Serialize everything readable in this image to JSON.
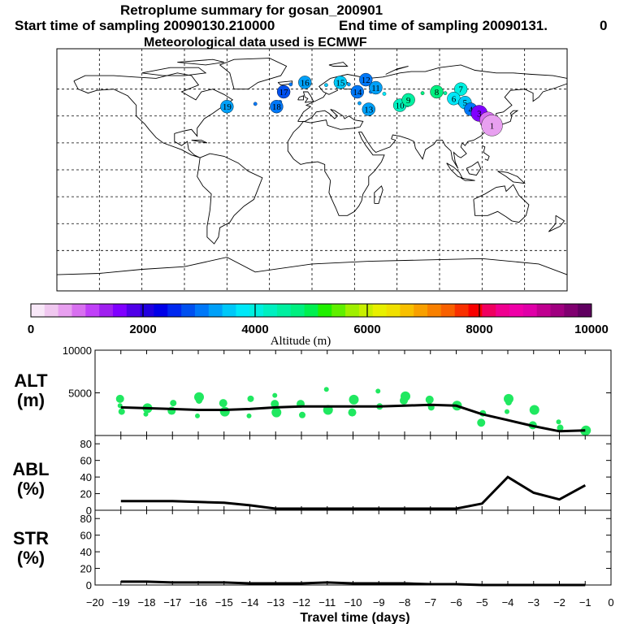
{
  "header": {
    "title": "Retroplume summary for gosan_200901",
    "start_label": "Start time of sampling 20090130.210000",
    "end_label": "End time of sampling 20090131.",
    "end_suffix": "0",
    "met_label": "Meteorological data used is ECMWF"
  },
  "chart_data": [
    {
      "type": "scatter",
      "name": "retroplume-map",
      "description_labels": "numbers = travel days back",
      "points": [
        {
          "day": 1,
          "lon": 127,
          "lat": 33,
          "alt": 500
        },
        {
          "day": 2,
          "lon": 124,
          "lat": 37,
          "alt": 800
        },
        {
          "day": 3,
          "lon": 118,
          "lat": 42,
          "alt": 1500
        },
        {
          "day": 4,
          "lon": 112,
          "lat": 45,
          "alt": 3000
        },
        {
          "day": 5,
          "lon": 108,
          "lat": 50,
          "alt": 3500
        },
        {
          "day": 6,
          "lon": 100,
          "lat": 53,
          "alt": 3800
        },
        {
          "day": 7,
          "lon": 105,
          "lat": 60,
          "alt": 4000
        },
        {
          "day": 8,
          "lon": 88,
          "lat": 58,
          "alt": 4800
        },
        {
          "day": 9,
          "lon": 68,
          "lat": 52,
          "alt": 4500
        },
        {
          "day": 10,
          "lon": 62,
          "lat": 48,
          "alt": 4200
        },
        {
          "day": 11,
          "lon": 45,
          "lat": 61,
          "alt": 3200
        },
        {
          "day": 12,
          "lon": 38,
          "lat": 67,
          "alt": 3000
        },
        {
          "day": 13,
          "lon": 40,
          "lat": 45,
          "alt": 3300
        },
        {
          "day": 14,
          "lon": 32,
          "lat": 58,
          "alt": 3100
        },
        {
          "day": 15,
          "lon": 20,
          "lat": 65,
          "alt": 3600
        },
        {
          "day": 16,
          "lon": -5,
          "lat": 65,
          "alt": 3400
        },
        {
          "day": 17,
          "lon": -20,
          "lat": 58,
          "alt": 2900
        },
        {
          "day": 18,
          "lon": -25,
          "lat": 47,
          "alt": 3000
        },
        {
          "day": 19,
          "lon": -60,
          "lat": 47,
          "alt": 3300
        }
      ]
    },
    {
      "type": "line",
      "name": "altitude",
      "ylabel": "ALT\n(m)",
      "ylim": [
        0,
        10000
      ],
      "yticks": [
        5000,
        10000
      ],
      "x": [
        -19,
        -18,
        -17,
        -16,
        -15,
        -14,
        -13,
        -12,
        -11,
        -10,
        -9,
        -8,
        -7,
        -6,
        -5,
        -4,
        -3,
        -2,
        -1
      ],
      "values": [
        3300,
        3200,
        3100,
        3000,
        3000,
        3100,
        3300,
        3400,
        3400,
        3400,
        3400,
        3500,
        3600,
        3500,
        2500,
        1800,
        1100,
        500,
        600
      ],
      "scatter_values": [
        3500,
        2800,
        4300,
        3200,
        2500,
        3800,
        2900,
        4500,
        2300,
        4100,
        3800,
        2800,
        2300,
        4300,
        3700,
        2700,
        4700,
        2400,
        3700,
        3000,
        5400,
        4200,
        2700,
        4200,
        5200,
        3400,
        4100,
        4600,
        3600,
        3300,
        4200,
        3500,
        3700,
        2600,
        1500,
        4300,
        2800,
        3900,
        1200,
        3000,
        1600,
        900,
        500,
        600
      ]
    },
    {
      "type": "line",
      "name": "abl",
      "ylabel": "ABL\n(%)",
      "ylim": [
        0,
        90
      ],
      "yticks": [
        0,
        20,
        40,
        60,
        80
      ],
      "x": [
        -19,
        -18,
        -17,
        -16,
        -15,
        -14,
        -13,
        -12,
        -11,
        -10,
        -9,
        -8,
        -7,
        -6,
        -5,
        -4,
        -3,
        -2,
        -1
      ],
      "values": [
        11,
        11,
        11,
        10,
        9,
        6,
        2,
        2,
        2,
        2,
        2,
        2,
        2,
        2,
        8,
        40,
        21,
        13,
        30
      ]
    },
    {
      "type": "line",
      "name": "str",
      "ylabel": "STR\n(%)",
      "ylim": [
        0,
        90
      ],
      "yticks": [
        0,
        20,
        40,
        60,
        80
      ],
      "x": [
        -19,
        -18,
        -17,
        -16,
        -15,
        -14,
        -13,
        -12,
        -11,
        -10,
        -9,
        -8,
        -7,
        -6,
        -5,
        -4,
        -3,
        -2,
        -1
      ],
      "values": [
        4,
        4,
        3,
        3,
        3,
        2,
        2,
        2,
        3,
        2,
        2,
        2,
        1,
        1,
        0,
        0,
        0,
        0,
        0
      ]
    }
  ],
  "colorbar": {
    "label": "Altitude (m)",
    "ticks": [
      "0",
      "2000",
      "4000",
      "6000",
      "8000",
      "10000"
    ],
    "min": 0,
    "max": 10000,
    "colors": [
      "#f8e8f8",
      "#f0c8f0",
      "#e8a0f0",
      "#d870f0",
      "#c040f8",
      "#a020f0",
      "#8000ff",
      "#5000e8",
      "#2000e0",
      "#0000e8",
      "#0028f0",
      "#0050f0",
      "#0078f8",
      "#00a0f8",
      "#00c8f8",
      "#00e8f8",
      "#00f0e0",
      "#00f0c0",
      "#00f0a0",
      "#00f080",
      "#00f050",
      "#20f000",
      "#60f000",
      "#a0f000",
      "#c8f000",
      "#e8f000",
      "#f0e000",
      "#f8c000",
      "#f8a000",
      "#f88000",
      "#f86000",
      "#f83000",
      "#f80000",
      "#f00060",
      "#f00090",
      "#f000a8",
      "#e000a8",
      "#c00090",
      "#a00080",
      "#800070",
      "#600060"
    ]
  },
  "x_axis": {
    "label": "Travel time (days)",
    "ticks": [
      "−20",
      "−19",
      "−18",
      "−17",
      "−16",
      "−15",
      "−14",
      "−13",
      "−12",
      "−11",
      "−10",
      "−9",
      "−8",
      "−7",
      "−6",
      "−5",
      "−4",
      "−3",
      "−2",
      "−1",
      "0"
    ]
  },
  "panels": {
    "alt_label_1": "ALT",
    "alt_label_2": "(m)",
    "abl_label_1": "ABL",
    "abl_label_2": "(%)",
    "str_label_1": "STR",
    "str_label_2": "(%)"
  }
}
